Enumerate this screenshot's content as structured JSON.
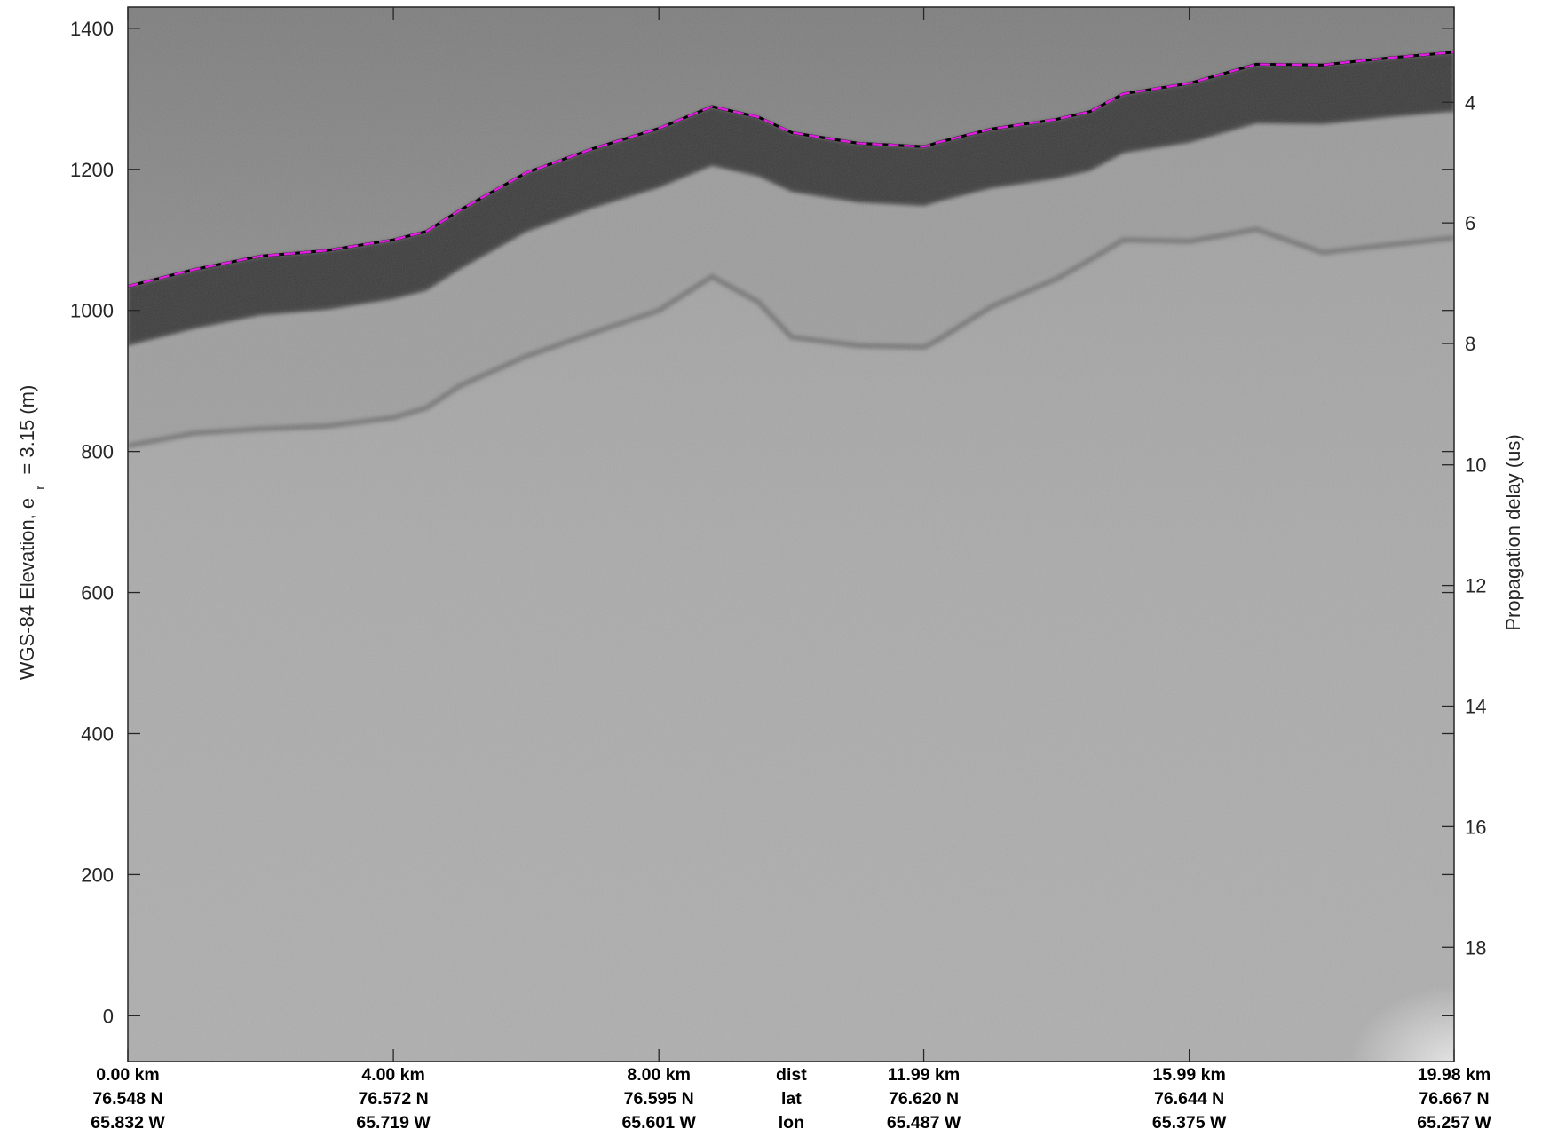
{
  "chart_data": {
    "type": "heatmap",
    "title": "",
    "ylabel": "WGS-84 Elevation, e",
    "ylabel_subscript": "r",
    "ylabel_suffix": "= 3.15 (m)",
    "y2label": "Propagation delay (us)",
    "ylim": [
      -65,
      1430
    ],
    "y_ticks": [
      0,
      200,
      400,
      600,
      800,
      1000,
      1200,
      1400
    ],
    "y2_ticks": [
      4,
      6,
      8,
      10,
      12,
      14,
      16,
      18
    ],
    "y2_tick_elevations": [
      1295,
      1124,
      953,
      781,
      610,
      439,
      268,
      97
    ],
    "grid": false,
    "xlim_km": [
      0,
      19.98
    ],
    "x_label_columns": [
      {
        "km": 0.0,
        "dist": "0.00 km",
        "lat": "76.548 N",
        "lon": "65.832 W"
      },
      {
        "km": 4.0,
        "dist": "4.00 km",
        "lat": "76.572 N",
        "lon": "65.719 W"
      },
      {
        "km": 8.0,
        "dist": "8.00 km",
        "lat": "76.595 N",
        "lon": "65.601 W"
      },
      {
        "km": 11.99,
        "dist": "11.99 km",
        "lat": "76.620 N",
        "lon": "65.487 W"
      },
      {
        "km": 15.99,
        "dist": "15.99 km",
        "lat": "76.644 N",
        "lon": "65.375 W"
      },
      {
        "km": 19.98,
        "dist": "19.98 km",
        "lat": "76.667 N",
        "lon": "65.257 W"
      }
    ],
    "row_labels": {
      "dist": "dist",
      "lat": "lat",
      "lon": "lon"
    },
    "surface_pick": {
      "name": "",
      "color": "#e020e0",
      "style": "dashed",
      "x_km": [
        0,
        1,
        2,
        3,
        4,
        4.5,
        5,
        6,
        7,
        8,
        8.8,
        9.5,
        10,
        11,
        12,
        12.2,
        13,
        14,
        14.5,
        15,
        16,
        17,
        18,
        19,
        19.98
      ],
      "y_m": [
        1034,
        1058,
        1077,
        1085,
        1100,
        1112,
        1142,
        1195,
        1229,
        1258,
        1289,
        1274,
        1252,
        1237,
        1232,
        1238,
        1257,
        1271,
        1282,
        1307,
        1322,
        1349,
        1348,
        1358,
        1366
      ]
    },
    "bed_reflector": {
      "x_km": [
        0,
        1,
        2,
        3,
        4,
        4.5,
        5,
        6,
        7,
        8,
        8.8,
        9.5,
        10,
        11,
        12,
        12.2,
        13,
        14,
        14.5,
        15,
        16,
        17,
        18,
        19,
        19.98
      ],
      "y_m": [
        808,
        826,
        832,
        836,
        848,
        862,
        893,
        935,
        968,
        1000,
        1048,
        1012,
        962,
        950,
        948,
        958,
        1005,
        1045,
        1072,
        1100,
        1098,
        1115,
        1082,
        1093,
        1103
      ]
    },
    "image_description_colors": {
      "background": "#a9a9a9",
      "upper_layers": "#8c8c8c",
      "dark_band": "#3f3f3f",
      "surface_line": "#e020e0"
    }
  }
}
